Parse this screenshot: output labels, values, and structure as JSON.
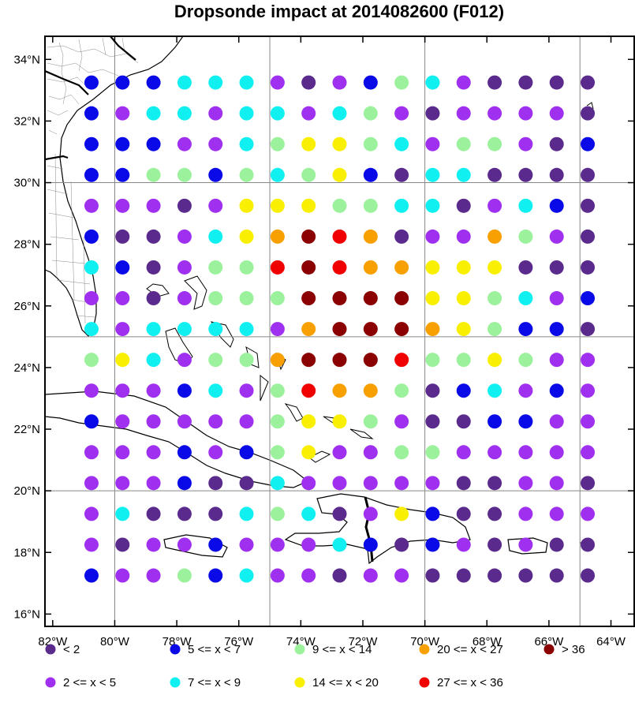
{
  "title": "Dropsonde impact at 2014082600 (F012)",
  "map": {
    "lon_range": [
      -82.25,
      -63.25
    ],
    "lat_range": [
      15.6,
      34.75
    ],
    "gridlines": {
      "lons": [
        -80,
        -75,
        -70,
        -65
      ],
      "lats": [
        20,
        25,
        30
      ]
    },
    "x_ticks": [
      {
        "value": -82,
        "label": "82°W"
      },
      {
        "value": -80,
        "label": "80°W"
      },
      {
        "value": -78,
        "label": "78°W"
      },
      {
        "value": -76,
        "label": "76°W"
      },
      {
        "value": -74,
        "label": "74°W"
      },
      {
        "value": -72,
        "label": "72°W"
      },
      {
        "value": -70,
        "label": "70°W"
      },
      {
        "value": -68,
        "label": "68°W"
      },
      {
        "value": -66,
        "label": "66°W"
      },
      {
        "value": -64,
        "label": "64°W"
      }
    ],
    "y_ticks": [
      {
        "value": 16,
        "label": "16°N"
      },
      {
        "value": 18,
        "label": "18°N"
      },
      {
        "value": 20,
        "label": "20°N"
      },
      {
        "value": 22,
        "label": "22°N"
      },
      {
        "value": 24,
        "label": "24°N"
      },
      {
        "value": 26,
        "label": "26°N"
      },
      {
        "value": 28,
        "label": "28°N"
      },
      {
        "value": 30,
        "label": "30°N"
      },
      {
        "value": 32,
        "label": "32°N"
      },
      {
        "value": 34,
        "label": "34°N"
      }
    ]
  },
  "categories": [
    {
      "code": 0,
      "label": "<  2",
      "color": "#5a2a8c"
    },
    {
      "code": 1,
      "label": "2 <= x <  5",
      "color": "#a030f0"
    },
    {
      "code": 2,
      "label": "5 <= x <  7",
      "color": "#0a0ae8"
    },
    {
      "code": 3,
      "label": "7 <= x <  9",
      "color": "#10f0f0"
    },
    {
      "code": 4,
      "label": "9 <= x < 14",
      "color": "#9cf29c"
    },
    {
      "code": 5,
      "label": "14 <= x < 20",
      "color": "#f8f000"
    },
    {
      "code": 6,
      "label": "20 <= x < 27",
      "color": "#f8a000"
    },
    {
      "code": 7,
      "label": "27 <= x < 36",
      "color": "#f00000"
    },
    {
      "code": 8,
      "label": "> 36",
      "color": "#8b0000"
    }
  ],
  "chart_data": {
    "type": "heatmap",
    "x": [
      -80.75,
      -79.75,
      -78.75,
      -77.75,
      -76.75,
      -75.75,
      -74.75,
      -73.75,
      -72.75,
      -71.75,
      -70.75,
      -69.75,
      -68.75,
      -67.75,
      -66.75,
      -65.75,
      -64.75
    ],
    "y": [
      33.25,
      32.25,
      31.25,
      30.25,
      29.25,
      28.25,
      27.25,
      26.25,
      25.25,
      24.25,
      23.25,
      22.25,
      21.25,
      20.25,
      19.25,
      18.25,
      17.25
    ],
    "categories_grid": [
      [
        2,
        2,
        2,
        3,
        3,
        3,
        1,
        0,
        1,
        2,
        4,
        3,
        1,
        0,
        0,
        0,
        0
      ],
      [
        2,
        1,
        3,
        3,
        1,
        3,
        3,
        1,
        3,
        4,
        1,
        0,
        1,
        1,
        1,
        1,
        0
      ],
      [
        2,
        2,
        2,
        1,
        1,
        3,
        4,
        5,
        5,
        4,
        3,
        1,
        4,
        4,
        1,
        0,
        2
      ],
      [
        2,
        2,
        4,
        4,
        2,
        4,
        3,
        4,
        5,
        2,
        0,
        3,
        3,
        0,
        0,
        0,
        0
      ],
      [
        1,
        1,
        1,
        0,
        1,
        5,
        5,
        5,
        4,
        4,
        3,
        3,
        0,
        1,
        3,
        2,
        0
      ],
      [
        2,
        0,
        0,
        1,
        3,
        5,
        6,
        8,
        7,
        6,
        0,
        1,
        1,
        6,
        4,
        1,
        0
      ],
      [
        3,
        2,
        0,
        1,
        4,
        4,
        7,
        8,
        7,
        6,
        6,
        5,
        5,
        5,
        0,
        0,
        0
      ],
      [
        1,
        1,
        0,
        1,
        4,
        4,
        4,
        8,
        8,
        8,
        8,
        5,
        5,
        4,
        3,
        1,
        2
      ],
      [
        3,
        1,
        3,
        3,
        3,
        3,
        1,
        6,
        8,
        8,
        8,
        6,
        5,
        4,
        2,
        2,
        0
      ],
      [
        4,
        5,
        3,
        1,
        4,
        4,
        6,
        8,
        8,
        8,
        7,
        4,
        4,
        5,
        4,
        1,
        1
      ],
      [
        1,
        1,
        1,
        2,
        3,
        1,
        4,
        7,
        6,
        6,
        4,
        0,
        2,
        3,
        1,
        2,
        1
      ],
      [
        2,
        1,
        1,
        1,
        1,
        1,
        4,
        5,
        5,
        4,
        1,
        0,
        0,
        2,
        2,
        1,
        1
      ],
      [
        1,
        1,
        1,
        2,
        1,
        2,
        4,
        5,
        1,
        1,
        4,
        4,
        1,
        1,
        1,
        1,
        1
      ],
      [
        1,
        1,
        1,
        2,
        0,
        0,
        3,
        1,
        1,
        1,
        1,
        1,
        0,
        0,
        1,
        1,
        0
      ],
      [
        1,
        3,
        0,
        0,
        0,
        3,
        4,
        3,
        0,
        1,
        5,
        2,
        0,
        0,
        1,
        1,
        1
      ],
      [
        1,
        0,
        1,
        1,
        2,
        1,
        1,
        1,
        3,
        2,
        0,
        2,
        1,
        0,
        1,
        0,
        0
      ],
      [
        2,
        1,
        1,
        4,
        2,
        3,
        1,
        1,
        0,
        1,
        1,
        0,
        0,
        0,
        0,
        0,
        0
      ]
    ]
  }
}
